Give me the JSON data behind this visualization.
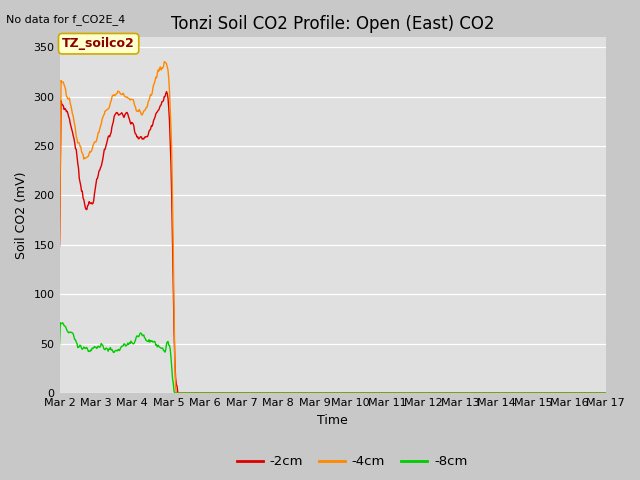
{
  "title": "Tonzi Soil CO2 Profile: Open (East) CO2",
  "no_data_text": "No data for f_CO2E_4",
  "legend_title": "TZ_soilco2",
  "ylabel": "Soil CO2 (mV)",
  "xlabel": "Time",
  "fig_bg_color": "#c8c8c8",
  "plot_bg_color": "#e0e0e0",
  "line_colors": {
    "m2cm": "#dd0000",
    "m4cm": "#ff8800",
    "m8cm": "#00cc00"
  },
  "ylim": [
    0,
    360
  ],
  "yticks": [
    0,
    50,
    100,
    150,
    200,
    250,
    300,
    350
  ],
  "title_fontsize": 12,
  "axis_label_fontsize": 9,
  "tick_fontsize": 8,
  "linewidth": 1.0,
  "legend_title_color": "#8b0000",
  "legend_bg": "#ffffcc",
  "legend_border_color": "#ccaa00"
}
